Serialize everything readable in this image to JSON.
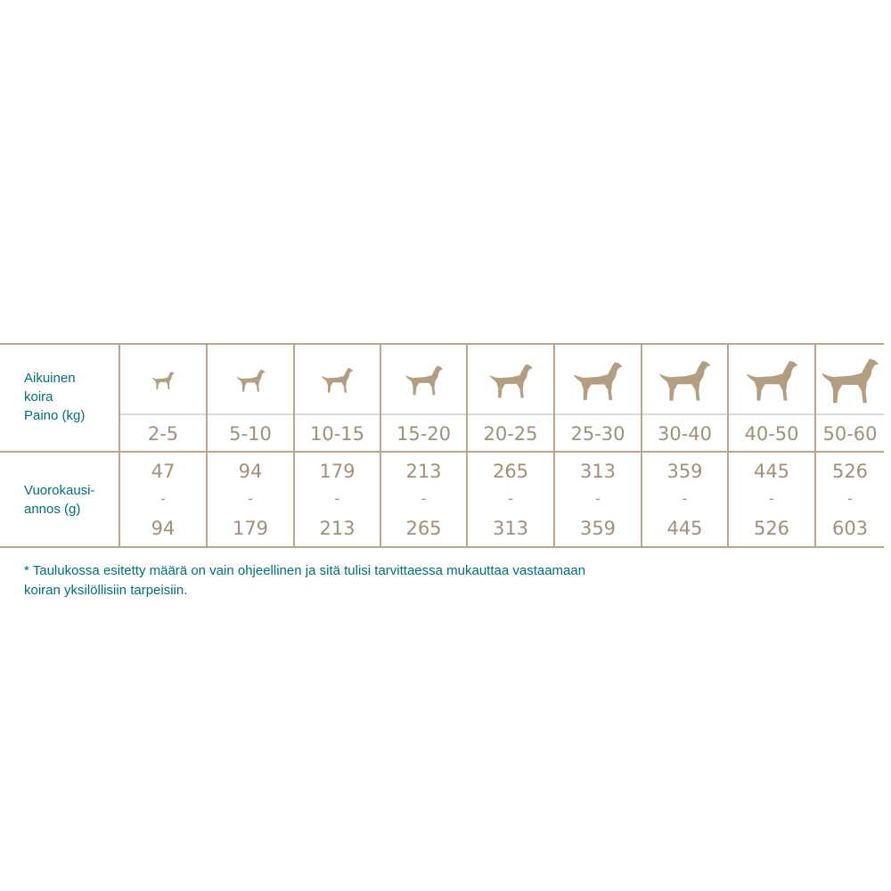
{
  "row_labels": {
    "weight": [
      "Aikuinen",
      "koira",
      "Paino (kg)"
    ],
    "portion": [
      "Vuorokausi-",
      "annos (g)"
    ]
  },
  "columns": [
    {
      "kg": "2-5",
      "min": "47",
      "sep": "-",
      "max": "94",
      "icon": "chihuahua-icon",
      "size": 0.4
    },
    {
      "kg": "5-10",
      "min": "94",
      "sep": "-",
      "max": "179",
      "icon": "dachshund-icon",
      "size": 0.5
    },
    {
      "kg": "10-15",
      "min": "179",
      "sep": "-",
      "max": "213",
      "icon": "terrier-icon",
      "size": 0.55
    },
    {
      "kg": "15-20",
      "min": "213",
      "sep": "-",
      "max": "265",
      "icon": "bull-terrier-icon",
      "size": 0.65
    },
    {
      "kg": "20-25",
      "min": "265",
      "sep": "-",
      "max": "313",
      "icon": "pinscher-icon",
      "size": 0.75
    },
    {
      "kg": "25-30",
      "min": "313",
      "sep": "-",
      "max": "359",
      "icon": "shepherd-icon",
      "size": 0.85
    },
    {
      "kg": "30-40",
      "min": "359",
      "sep": "-",
      "max": "445",
      "icon": "airedale-icon",
      "size": 0.9
    },
    {
      "kg": "40-50",
      "min": "445",
      "sep": "-",
      "max": "526",
      "icon": "pointer-icon",
      "size": 0.9
    },
    {
      "kg": "50-60",
      "min": "526",
      "sep": "-",
      "max": "603",
      "icon": "great-dane-icon",
      "size": 1.0
    }
  ],
  "footnote": [
    "* Taulukossa esitetty määrä on vain ohjeellinen ja sitä tulisi tarvittaessa mukauttaa vastaamaan",
    "koiran yksilöllisiin tarpeisiin."
  ],
  "colors": {
    "border": "#bba68c",
    "text": "#a2907a",
    "dog": "#b39e82",
    "label": "#00707a"
  }
}
